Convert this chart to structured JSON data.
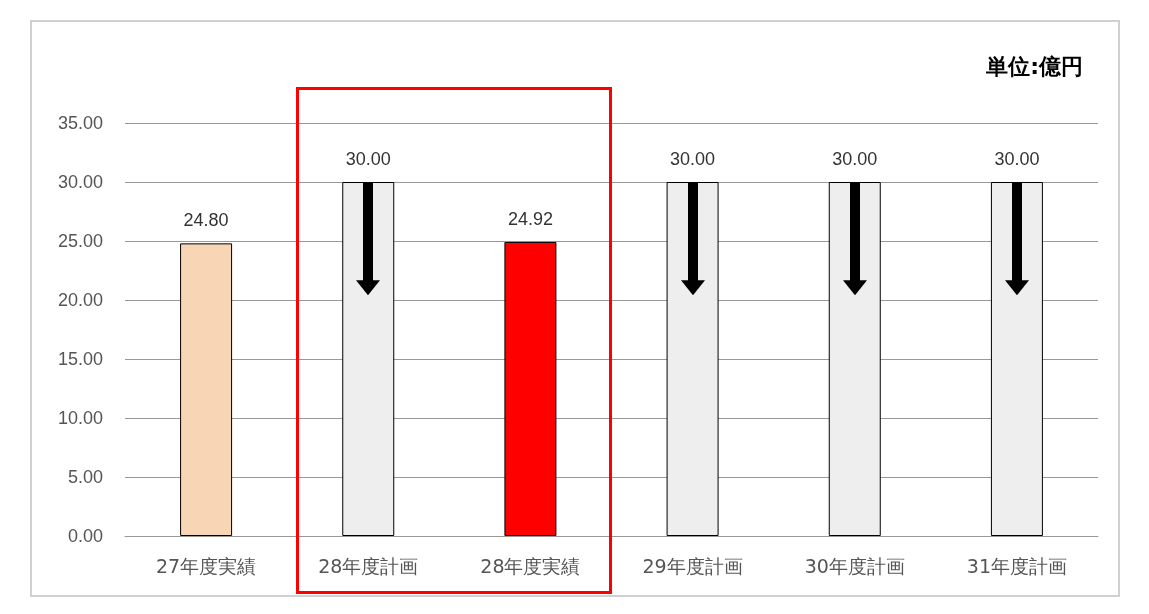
{
  "chart_data": {
    "type": "bar",
    "categories": [
      "27年度実績",
      "28年度計画",
      "28年度実績",
      "29年度計画",
      "30年度計画",
      "31年度計画"
    ],
    "values": [
      24.8,
      30,
      24.92,
      30,
      30,
      30
    ],
    "colors": [
      "#f8d5b5",
      "#eeeeee",
      "#ff0000",
      "#eeeeee",
      "#eeeeee",
      "#eeeeee"
    ],
    "value_labels": [
      "24.80",
      "30.00",
      "24.92",
      "30.00",
      "30.00",
      "30.00"
    ],
    "ylim": [
      0,
      35
    ],
    "yticks": [
      {
        "value": 0,
        "label": "0.00"
      },
      {
        "value": 5,
        "label": "5.00"
      },
      {
        "value": 10,
        "label": "10.00"
      },
      {
        "value": 15,
        "label": "15.00"
      },
      {
        "value": 20,
        "label": "20.00"
      },
      {
        "value": 25,
        "label": "25.00"
      },
      {
        "value": 30,
        "label": "30.00"
      },
      {
        "value": 35,
        "label": "35.00"
      }
    ],
    "grid": "y",
    "annotations": [
      "単位:億円"
    ]
  }
}
